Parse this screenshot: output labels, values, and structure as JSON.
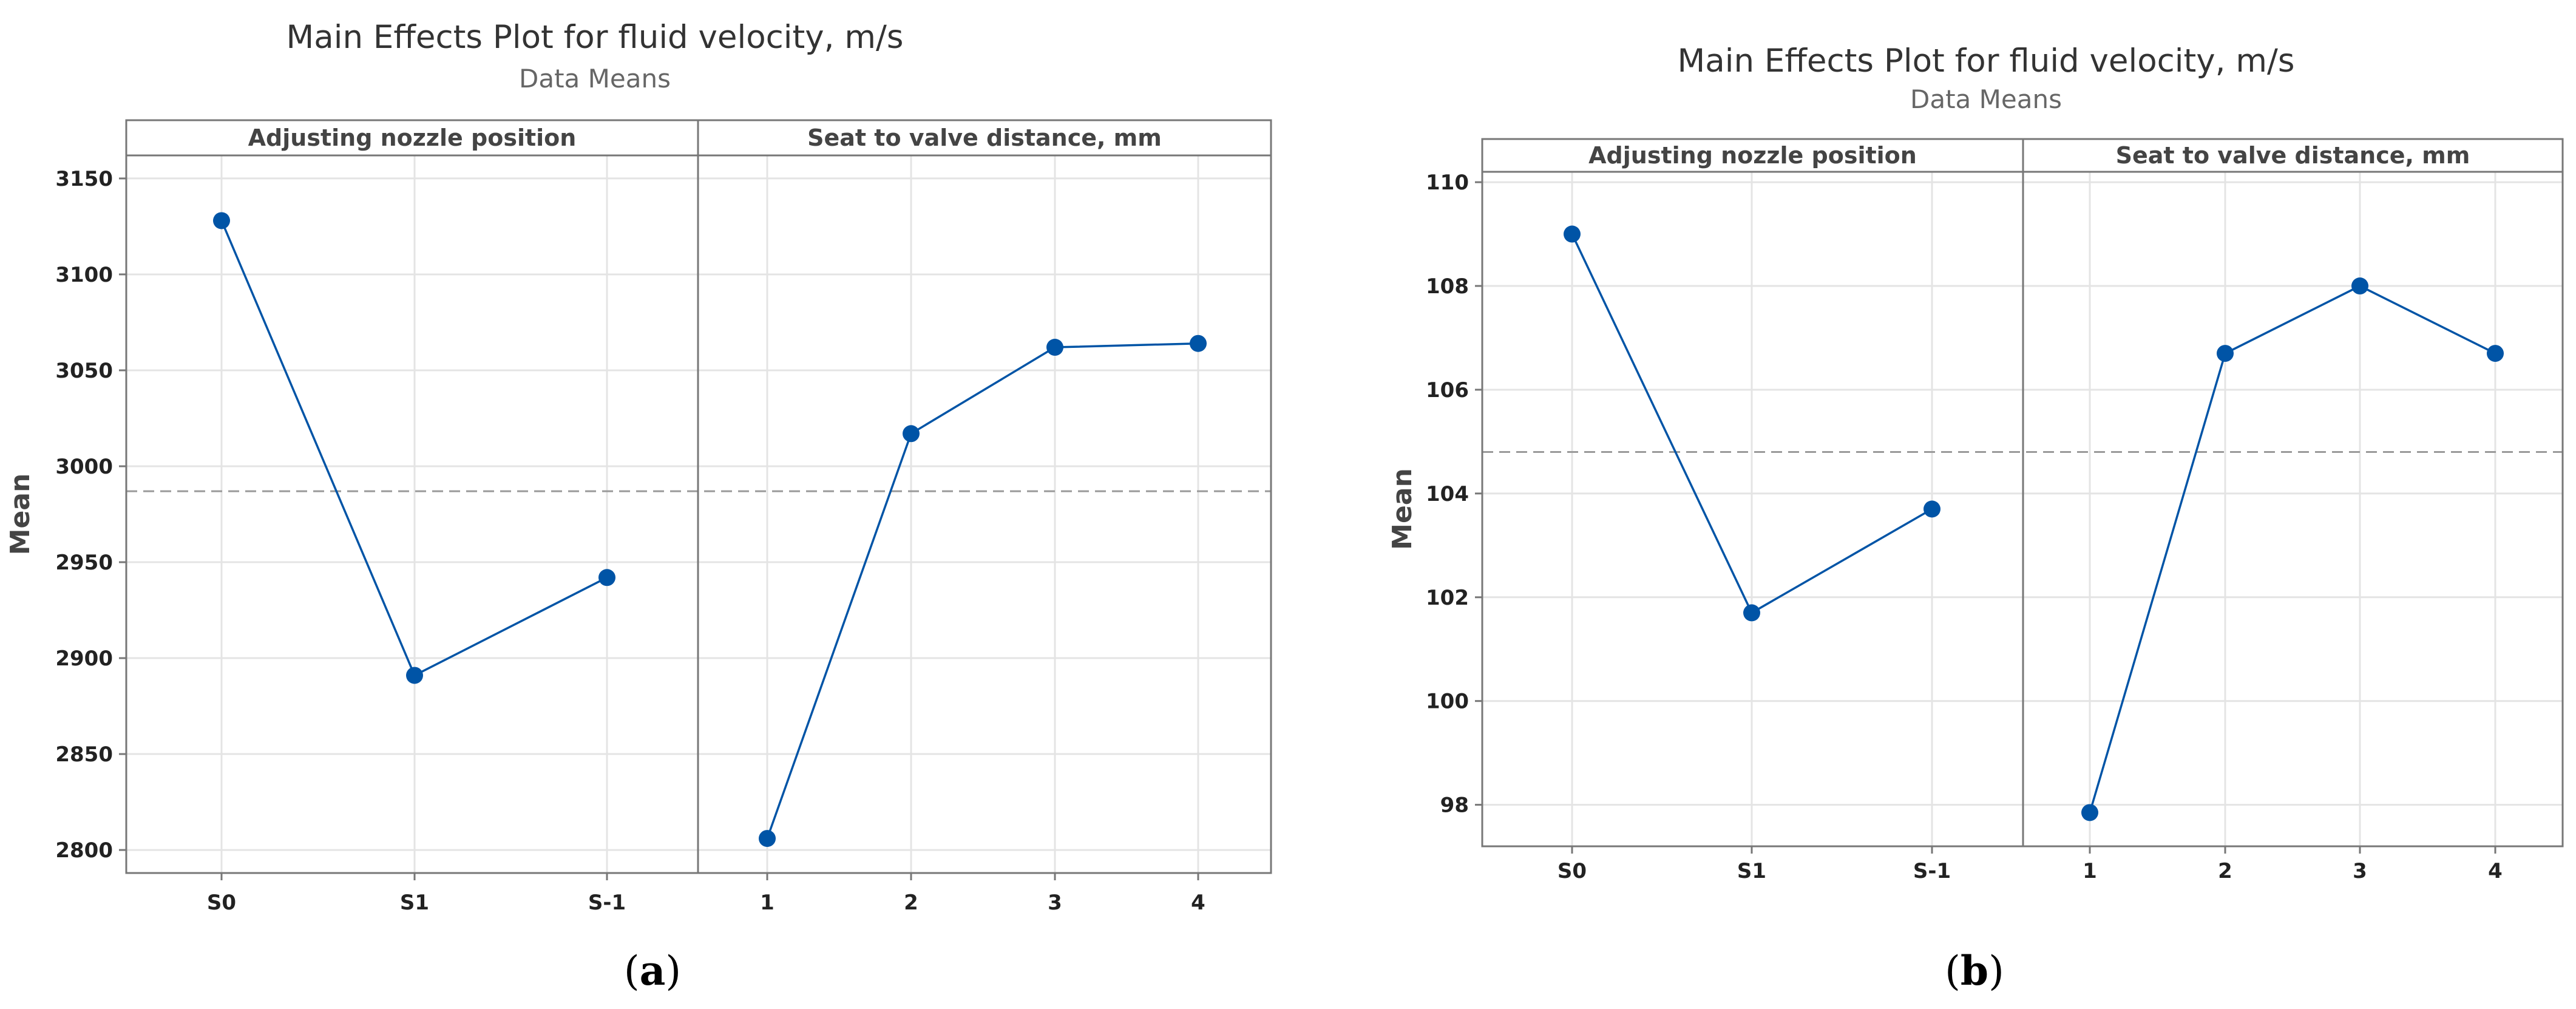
{
  "colors": {
    "series": "#0054a6",
    "reference": "#9a9a9a",
    "grid": "#e4e4e4",
    "frame": "#777777"
  },
  "chart_data": [
    {
      "type": "line",
      "caption": "a",
      "title": "Main Effects Plot for fluid velocity, m/s",
      "subtitle": "Data Means",
      "ylabel": "Mean",
      "ylim": [
        2788,
        3162
      ],
      "yticks": [
        2800,
        2850,
        2900,
        2950,
        3000,
        3050,
        3100,
        3150
      ],
      "reference_line": 2987,
      "grid": true,
      "panels": [
        {
          "label": "Adjusting nozzle position",
          "categories": [
            "S0",
            "S1",
            "S-1"
          ],
          "values": [
            3128,
            2891,
            2942
          ]
        },
        {
          "label": "Seat to valve distance, mm",
          "categories": [
            "1",
            "2",
            "3",
            "4"
          ],
          "values": [
            2806,
            3017,
            3062,
            3064
          ]
        }
      ]
    },
    {
      "type": "line",
      "caption": "b",
      "title": "Main Effects Plot for fluid velocity, m/s",
      "subtitle": "Data Means",
      "ylabel": "Mean",
      "ylim": [
        97.2,
        110.2
      ],
      "yticks": [
        98,
        100,
        102,
        104,
        106,
        108,
        110
      ],
      "reference_line": 104.8,
      "grid": true,
      "panels": [
        {
          "label": "Adjusting nozzle position",
          "categories": [
            "S0",
            "S1",
            "S-1"
          ],
          "values": [
            109.0,
            101.7,
            103.7
          ]
        },
        {
          "label": "Seat to valve distance, mm",
          "categories": [
            "1",
            "2",
            "3",
            "4"
          ],
          "values": [
            97.85,
            106.7,
            108.0,
            106.7
          ]
        }
      ]
    }
  ]
}
